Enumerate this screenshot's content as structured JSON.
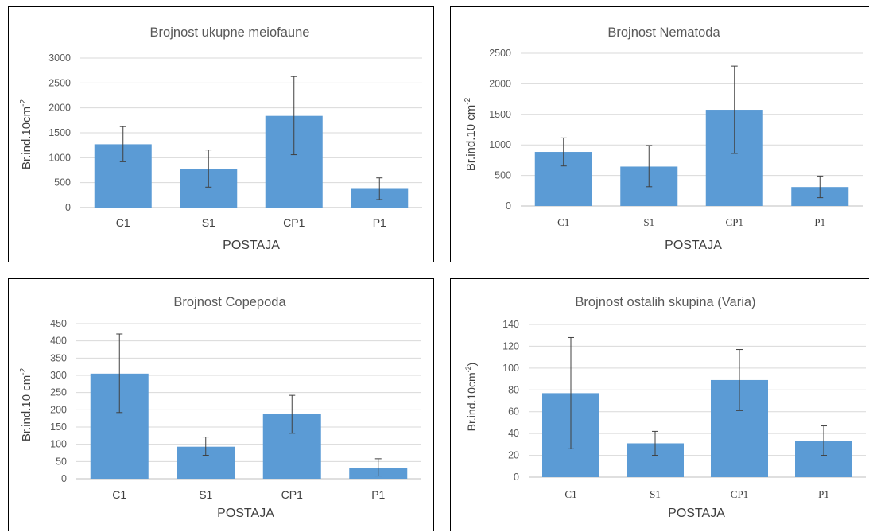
{
  "chart_data": [
    {
      "type": "bar",
      "title": "Brojnost ukupne meiofaune",
      "xlabel": "POSTAJA",
      "ylabel": "Br.ind.10cm",
      "ylabel_sup": "-2",
      "categories": [
        "C1",
        "S1",
        "CP1",
        "P1"
      ],
      "values": [
        1270,
        775,
        1840,
        375
      ],
      "error_low": [
        920,
        410,
        1060,
        160
      ],
      "error_high": [
        1625,
        1155,
        2630,
        595
      ],
      "ylim": [
        0,
        3000
      ],
      "yticks": [
        "0",
        "500",
        "1000",
        "1500",
        "2000",
        "2500",
        "3000"
      ],
      "grid": true,
      "legend": "none"
    },
    {
      "type": "bar",
      "title": "Brojnost Nematoda",
      "xlabel": "POSTAJA",
      "ylabel": "Br.ind.10 cm",
      "ylabel_sup": "-2",
      "categories": [
        "C1",
        "S1",
        "CP1",
        "P1"
      ],
      "values": [
        885,
        645,
        1575,
        310
      ],
      "error_low": [
        655,
        315,
        860,
        135
      ],
      "error_high": [
        1115,
        990,
        2290,
        490
      ],
      "ylim": [
        0,
        2500
      ],
      "yticks": [
        "0",
        "500",
        "1000",
        "1500",
        "2000",
        "2500"
      ],
      "grid": true,
      "legend": "none"
    },
    {
      "type": "bar",
      "title": "Brojnost Copepoda",
      "xlabel": "POSTAJA",
      "ylabel": "Br.ind.10 cm",
      "ylabel_sup": "-2",
      "categories": [
        "C1",
        "S1",
        "CP1",
        "P1"
      ],
      "values": [
        305,
        93,
        187,
        32
      ],
      "error_low": [
        192,
        68,
        132,
        8
      ],
      "error_high": [
        420,
        121,
        242,
        58
      ],
      "ylim": [
        0,
        450
      ],
      "yticks": [
        "0",
        "50",
        "100",
        "150",
        "200",
        "250",
        "300",
        "350",
        "400",
        "450"
      ],
      "grid": true,
      "legend": "none"
    },
    {
      "type": "bar",
      "title": "Brojnost ostalih skupina (Varia)",
      "xlabel": "POSTAJA",
      "ylabel": "Br.ind.10cm",
      "ylabel_sup": "-2",
      "ylabel_suffix": ")",
      "categories": [
        "C1",
        "S1",
        "CP1",
        "P1"
      ],
      "values": [
        77,
        31,
        89,
        33
      ],
      "error_low": [
        26,
        20,
        61,
        20
      ],
      "error_high": [
        128,
        42,
        117,
        47
      ],
      "ylim": [
        0,
        140
      ],
      "yticks": [
        "0",
        "20",
        "40",
        "60",
        "80",
        "100",
        "120",
        "140"
      ],
      "grid": true,
      "legend": "none"
    }
  ]
}
